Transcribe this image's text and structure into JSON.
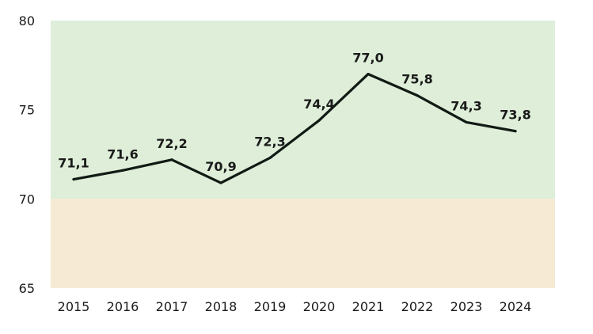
{
  "chart_data": {
    "type": "line",
    "title": "",
    "xlabel": "",
    "ylabel": "",
    "x": [
      "2015",
      "2016",
      "2017",
      "2018",
      "2019",
      "2020",
      "2021",
      "2022",
      "2023",
      "2024"
    ],
    "series": [
      {
        "values": [
          71.1,
          71.6,
          72.2,
          70.9,
          72.3,
          74.4,
          77.0,
          75.8,
          74.3,
          73.8
        ],
        "labels": [
          "71,1",
          "71,6",
          "72,2",
          "70,9",
          "72,3",
          "74,4",
          "77,0",
          "75,8",
          "74,3",
          "73,8"
        ],
        "color": "#111a14"
      }
    ],
    "ylim": [
      65,
      80
    ],
    "yticks": [
      65,
      70,
      75,
      80
    ],
    "ytick_labels": [
      "65",
      "70",
      "75",
      "80"
    ],
    "bands": [
      {
        "from": 70,
        "to": 80,
        "color": "#deeed8"
      },
      {
        "from": 65,
        "to": 70,
        "color": "#f6ead4"
      }
    ],
    "grid": false,
    "legend": "none"
  }
}
